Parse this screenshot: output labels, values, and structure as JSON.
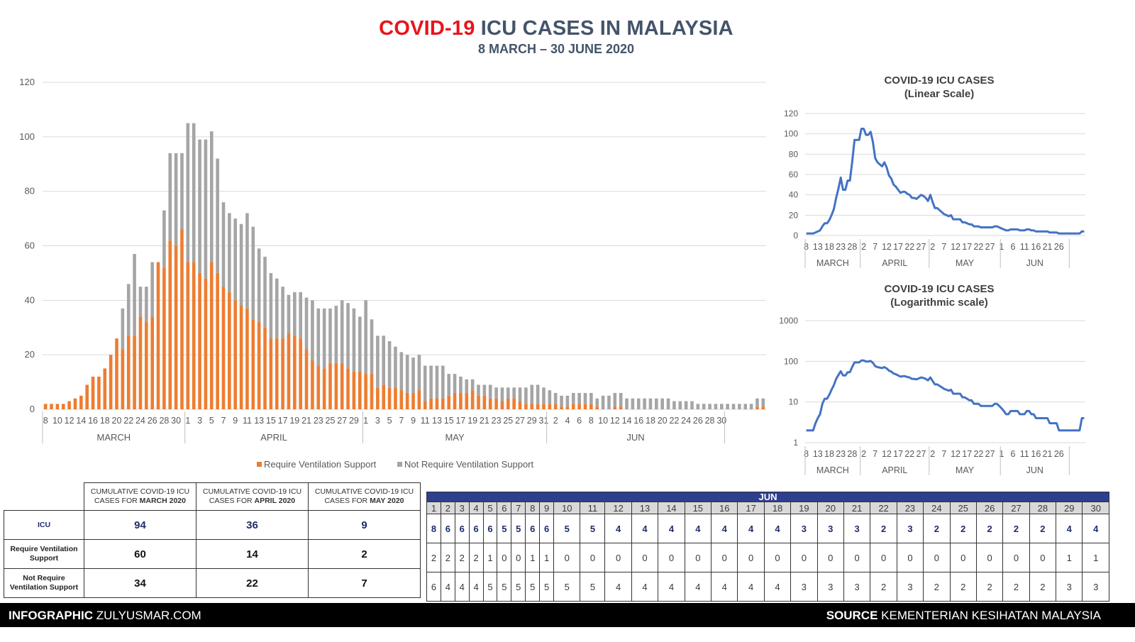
{
  "header": {
    "title_red": "COVID-19",
    "title_rest": "ICU CASES IN MALAYSIA",
    "subtitle": "8 MARCH – 30 JUNE 2020"
  },
  "colors": {
    "ventilated": "#ed7d31",
    "not_ventilated": "#a5a5a5",
    "line": "#4472c4",
    "title_red": "#e8141b",
    "title_blue": "#44546a",
    "table_header": "#2f3f8f"
  },
  "chart_data": [
    {
      "type": "bar",
      "stacked": true,
      "title": "",
      "ylim": [
        0,
        120
      ],
      "y_ticks": [
        0,
        20,
        40,
        60,
        80,
        100,
        120
      ],
      "grid": true,
      "legend_position": "bottom",
      "x_tick_labels": [
        "8",
        "10",
        "12",
        "14",
        "16",
        "18",
        "20",
        "22",
        "24",
        "26",
        "28",
        "30",
        "1",
        "3",
        "5",
        "7",
        "9",
        "11",
        "13",
        "15",
        "17",
        "19",
        "21",
        "23",
        "25",
        "27",
        "29",
        "1",
        "3",
        "5",
        "7",
        "9",
        "11",
        "13",
        "15",
        "17",
        "19",
        "21",
        "23",
        "25",
        "27",
        "29",
        "31",
        "2",
        "4",
        "6",
        "8",
        "10",
        "12",
        "14",
        "16",
        "18",
        "20",
        "22",
        "24",
        "26",
        "28",
        "30"
      ],
      "month_labels": [
        "MARCH",
        "APRIL",
        "MAY",
        "JUN"
      ],
      "series": [
        {
          "name": "Require Ventilation Support",
          "values": [
            2,
            2,
            2,
            2,
            3,
            4,
            5,
            9,
            12,
            12,
            15,
            20,
            26,
            22,
            27,
            27,
            34,
            32,
            34,
            54,
            52,
            62,
            60,
            66,
            54,
            54,
            50,
            48,
            54,
            50,
            45,
            43,
            40,
            38,
            37,
            33,
            32,
            30,
            26,
            26,
            26,
            28,
            27,
            26,
            22,
            18,
            16,
            15,
            17,
            17,
            17,
            15,
            14,
            14,
            13,
            13,
            8,
            9,
            8,
            8,
            7,
            6,
            6,
            7,
            3,
            4,
            4,
            4,
            5,
            6,
            6,
            6,
            7,
            5,
            5,
            4,
            4,
            3,
            4,
            4,
            3,
            2,
            2,
            2,
            2,
            2,
            2,
            1,
            1,
            2,
            2,
            2,
            2,
            1,
            0,
            0,
            1,
            1,
            0,
            0,
            0,
            0,
            0,
            0,
            0,
            0,
            0,
            0,
            0,
            0,
            0,
            0,
            0,
            0,
            0,
            0,
            0,
            0,
            0,
            0,
            1,
            1
          ]
        },
        {
          "name": "Not Require Ventilation Support",
          "values": [
            0,
            0,
            0,
            0,
            0,
            0,
            0,
            0,
            0,
            0,
            0,
            0,
            0,
            15,
            19,
            30,
            11,
            13,
            20,
            0,
            21,
            32,
            34,
            28,
            51,
            51,
            49,
            51,
            48,
            42,
            31,
            29,
            30,
            30,
            35,
            34,
            27,
            26,
            24,
            22,
            19,
            14,
            16,
            17,
            19,
            22,
            21,
            22,
            20,
            21,
            23,
            24,
            23,
            20,
            27,
            20,
            19,
            18,
            17,
            15,
            14,
            14,
            13,
            13,
            13,
            12,
            12,
            12,
            8,
            7,
            6,
            5,
            4,
            4,
            4,
            5,
            4,
            5,
            4,
            4,
            5,
            6,
            7,
            7,
            6,
            5,
            4,
            4,
            4,
            4,
            4,
            4,
            4,
            3,
            5,
            5,
            5,
            5,
            4,
            4,
            4,
            4,
            4,
            4,
            4,
            4,
            3,
            3,
            3,
            3,
            2,
            2,
            2,
            2,
            2,
            2,
            2,
            2,
            2,
            2,
            3,
            3
          ]
        }
      ]
    },
    {
      "type": "line",
      "title": "COVID-19 ICU CASES",
      "subtitle": "(Linear Scale)",
      "ylim": [
        0,
        120
      ],
      "y_ticks": [
        0,
        20,
        40,
        60,
        80,
        100,
        120
      ],
      "x_tick_labels": [
        "8",
        "13",
        "18",
        "23",
        "28",
        "2",
        "7",
        "12",
        "17",
        "22",
        "27",
        "2",
        "7",
        "12",
        "17",
        "22",
        "27",
        "1",
        "6",
        "11",
        "16",
        "21",
        "26"
      ],
      "month_labels": [
        "MARCH",
        "APRIL",
        "MAY",
        "JUN"
      ],
      "series": [
        {
          "name": "",
          "values": [
            2,
            2,
            2,
            2,
            3,
            4,
            5,
            9,
            12,
            12,
            15,
            20,
            26,
            37,
            46,
            57,
            45,
            45,
            54,
            54,
            73,
            94,
            94,
            94,
            105,
            105,
            99,
            99,
            102,
            92,
            76,
            72,
            70,
            68,
            72,
            67,
            59,
            56,
            50,
            48,
            45,
            42,
            43,
            43,
            41,
            40,
            37,
            37,
            36,
            38,
            40,
            39,
            37,
            34,
            40,
            33,
            27,
            27,
            25,
            23,
            21,
            20,
            19,
            20,
            16,
            16,
            16,
            16,
            13,
            13,
            12,
            11,
            11,
            9,
            9,
            9,
            8,
            8,
            8,
            8,
            8,
            8,
            9,
            9,
            8,
            7,
            6,
            5,
            5,
            6,
            6,
            6,
            6,
            5,
            5,
            5,
            6,
            6,
            5,
            5,
            4,
            4,
            4,
            4,
            4,
            4,
            3,
            3,
            3,
            3,
            2,
            2,
            2,
            2,
            2,
            2,
            2,
            2,
            2,
            2,
            4,
            4
          ]
        }
      ]
    },
    {
      "type": "line",
      "title": "COVID-19 ICU CASES",
      "subtitle": "(Logarithmic scale)",
      "y_scale": "log",
      "ylim": [
        1,
        1000
      ],
      "y_ticks": [
        1,
        10,
        100,
        1000
      ],
      "x_tick_labels": [
        "8",
        "13",
        "18",
        "23",
        "28",
        "2",
        "7",
        "12",
        "17",
        "22",
        "27",
        "2",
        "7",
        "12",
        "17",
        "22",
        "27",
        "1",
        "6",
        "11",
        "16",
        "21",
        "26"
      ],
      "month_labels": [
        "MARCH",
        "APRIL",
        "MAY",
        "JUN"
      ],
      "series": [
        {
          "name": "",
          "values": [
            2,
            2,
            2,
            2,
            3,
            4,
            5,
            9,
            12,
            12,
            15,
            20,
            26,
            37,
            46,
            57,
            45,
            45,
            54,
            54,
            73,
            94,
            94,
            94,
            105,
            105,
            99,
            99,
            102,
            92,
            76,
            72,
            70,
            68,
            72,
            67,
            59,
            56,
            50,
            48,
            45,
            42,
            43,
            43,
            41,
            40,
            37,
            37,
            36,
            38,
            40,
            39,
            37,
            34,
            40,
            33,
            27,
            27,
            25,
            23,
            21,
            20,
            19,
            20,
            16,
            16,
            16,
            16,
            13,
            13,
            12,
            11,
            11,
            9,
            9,
            9,
            8,
            8,
            8,
            8,
            8,
            8,
            9,
            9,
            8,
            7,
            6,
            5,
            5,
            6,
            6,
            6,
            6,
            5,
            5,
            5,
            6,
            6,
            5,
            5,
            4,
            4,
            4,
            4,
            4,
            4,
            3,
            3,
            3,
            3,
            2,
            2,
            2,
            2,
            2,
            2,
            2,
            2,
            2,
            2,
            4,
            4
          ]
        }
      ]
    }
  ],
  "cumulative_table": {
    "headers": [
      {
        "text": "CUMULATIVE COVID-19 ICU CASES FOR",
        "month": "MARCH 2020"
      },
      {
        "text": "CUMULATIVE COVID-19 ICU CASES FOR",
        "month": "APRIL 2020"
      },
      {
        "text": "CUMULATIVE COVID-19 ICU CASES FOR",
        "month": "MAY 2020"
      }
    ],
    "rows": [
      {
        "label": "ICU",
        "values": [
          "94",
          "36",
          "9"
        ]
      },
      {
        "label": "Require Ventilation Support",
        "values": [
          "60",
          "14",
          "2"
        ]
      },
      {
        "label": "Not Require Ventilation Support",
        "values": [
          "34",
          "22",
          "7"
        ]
      }
    ]
  },
  "june_table": {
    "month": "JUN",
    "days": [
      "1",
      "2",
      "3",
      "4",
      "5",
      "6",
      "7",
      "8",
      "9",
      "10",
      "11",
      "12",
      "13",
      "14",
      "15",
      "16",
      "17",
      "18",
      "19",
      "20",
      "21",
      "22",
      "23",
      "24",
      "25",
      "26",
      "27",
      "28",
      "29",
      "30"
    ],
    "icu": [
      "8",
      "6",
      "6",
      "6",
      "6",
      "5",
      "5",
      "6",
      "6",
      "5",
      "5",
      "4",
      "4",
      "4",
      "4",
      "4",
      "4",
      "4",
      "3",
      "3",
      "3",
      "2",
      "3",
      "2",
      "2",
      "2",
      "2",
      "2",
      "4",
      "4"
    ],
    "ventilated": [
      "2",
      "2",
      "2",
      "2",
      "1",
      "0",
      "0",
      "1",
      "1",
      "0",
      "0",
      "0",
      "0",
      "0",
      "0",
      "0",
      "0",
      "0",
      "0",
      "0",
      "0",
      "0",
      "0",
      "0",
      "0",
      "0",
      "0",
      "0",
      "1",
      "1"
    ],
    "not_ventilated": [
      "6",
      "4",
      "4",
      "4",
      "5",
      "5",
      "5",
      "5",
      "5",
      "5",
      "5",
      "4",
      "4",
      "4",
      "4",
      "4",
      "4",
      "4",
      "3",
      "3",
      "3",
      "2",
      "3",
      "2",
      "2",
      "2",
      "2",
      "2",
      "3",
      "3"
    ]
  },
  "footer": {
    "left_bold": "INFOGRAPHIC",
    "left_text": "ZULYUSMAR.COM",
    "right_bold": "SOURCE",
    "right_text": "KEMENTERIAN KESIHATAN MALAYSIA"
  }
}
